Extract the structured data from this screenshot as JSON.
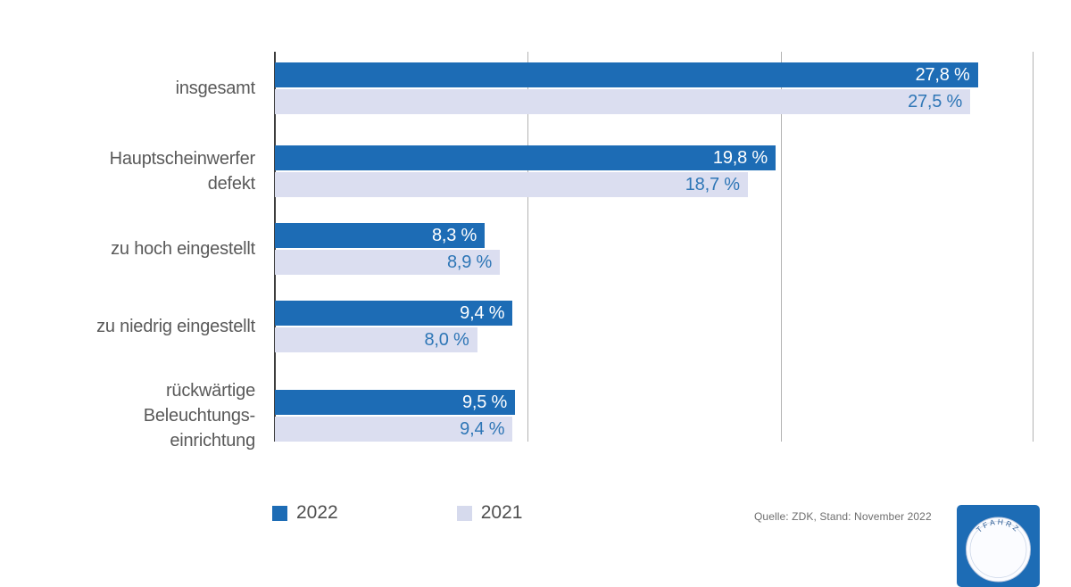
{
  "chart_data": {
    "type": "bar",
    "orientation": "horizontal",
    "title": "",
    "xlabel": "",
    "ylabel": "",
    "xlim": [
      0,
      30
    ],
    "gridlines_at": [
      10,
      20,
      30
    ],
    "grid": true,
    "legend_position": "bottom",
    "categories": [
      "insgesamt",
      "Hauptscheinwerfer\ndefekt",
      "zu hoch eingestellt",
      "zu niedrig eingestellt",
      "rückwärtige\nBeleuchtungs-\neinrichtung"
    ],
    "series": [
      {
        "name": "2022",
        "color": "#1d6cb5",
        "values": [
          27.8,
          19.8,
          8.3,
          9.4,
          9.5
        ],
        "labels": [
          "27,8 %",
          "19,8 %",
          "8,3 %",
          "9,4 %",
          "9,5 %"
        ]
      },
      {
        "name": "2021",
        "color": "#dbdef0",
        "values": [
          27.5,
          18.7,
          8.9,
          8.0,
          9.4
        ],
        "labels": [
          "27,5 %",
          "18,7 %",
          "8,9 %",
          "8,0 %",
          "9,4 %"
        ]
      }
    ]
  },
  "legend": {
    "items": [
      {
        "label": "2022",
        "color": "#1d6cb5"
      },
      {
        "label": "2021",
        "color": "#d6daed"
      }
    ]
  },
  "footer": {
    "source": "Quelle: ZDK, Stand: November 2022",
    "stamp_text": "TFAHRZ"
  }
}
